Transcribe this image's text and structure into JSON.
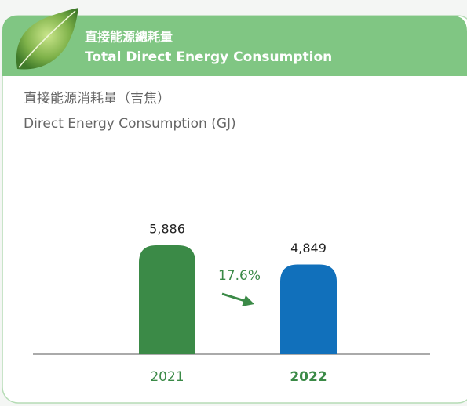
{
  "header": {
    "title_zh": "直接能源總耗量",
    "title_en": "Total Direct Energy Consumption"
  },
  "chart_data": {
    "type": "bar",
    "title": "直接能源消耗量（吉焦）",
    "subtitle": "Direct Energy Consumption (GJ)",
    "categories": [
      "2021",
      "2022"
    ],
    "values": [
      5886,
      4849
    ],
    "value_labels": [
      "5,886",
      "4,849"
    ],
    "colors": [
      "#3b8a47",
      "#1170bb"
    ],
    "annotation": "17.6%"
  }
}
